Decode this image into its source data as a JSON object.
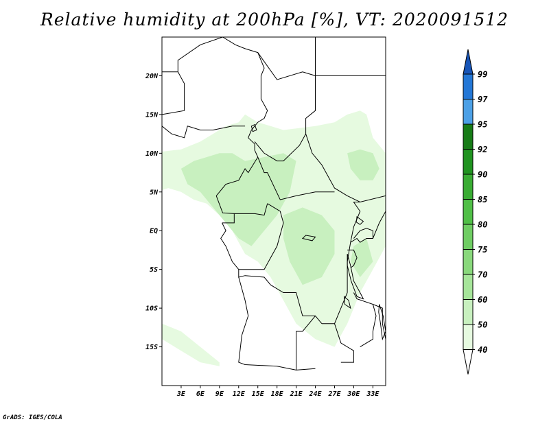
{
  "title": "Relative humidity at 200hPa [%], VT: 2020091512",
  "credit": "GrADS: IGES/COLA",
  "chart_data": {
    "type": "heatmap",
    "variable": "Relative humidity at 200hPa",
    "unit": "%",
    "valid_time": "2020091512",
    "lon_range": [
      0,
      35
    ],
    "lat_range": [
      -20,
      25
    ],
    "x_ticks": [
      {
        "value": 3,
        "label": "3E"
      },
      {
        "value": 6,
        "label": "6E"
      },
      {
        "value": 9,
        "label": "9E"
      },
      {
        "value": 12,
        "label": "12E"
      },
      {
        "value": 15,
        "label": "15E"
      },
      {
        "value": 18,
        "label": "18E"
      },
      {
        "value": 21,
        "label": "21E"
      },
      {
        "value": 24,
        "label": "24E"
      },
      {
        "value": 27,
        "label": "27E"
      },
      {
        "value": 30,
        "label": "30E"
      },
      {
        "value": 33,
        "label": "33E"
      }
    ],
    "y_ticks": [
      {
        "value": 20,
        "label": "20N"
      },
      {
        "value": 15,
        "label": "15N"
      },
      {
        "value": 10,
        "label": "10N"
      },
      {
        "value": 5,
        "label": "5N"
      },
      {
        "value": 0,
        "label": "EQ"
      },
      {
        "value": -5,
        "label": "5S"
      },
      {
        "value": -10,
        "label": "10S"
      },
      {
        "value": -15,
        "label": "15S"
      }
    ],
    "legend": {
      "labels": [
        "40",
        "50",
        "60",
        "70",
        "75",
        "80",
        "85",
        "90",
        "92",
        "95",
        "97",
        "99"
      ],
      "colors": [
        "#ffffff",
        "#e6fae0",
        "#c8f0bf",
        "#a6e59a",
        "#89d87c",
        "#6fcd63",
        "#50bf47",
        "#39ac33",
        "#209320",
        "#177c17",
        "#4ca0e6",
        "#2377d6",
        "#1755b8"
      ]
    },
    "humid_regions": [
      {
        "level": 1,
        "points": [
          [
            -2,
            10
          ],
          [
            3,
            10.5
          ],
          [
            6,
            11.5
          ],
          [
            8,
            12.5
          ],
          [
            10,
            13.5
          ],
          [
            12,
            14
          ],
          [
            13,
            15
          ],
          [
            15,
            14
          ],
          [
            17,
            13.5
          ],
          [
            19,
            13
          ],
          [
            21,
            13.2
          ],
          [
            24,
            13.5
          ],
          [
            27,
            14
          ],
          [
            29,
            15
          ],
          [
            31,
            15.5
          ],
          [
            32,
            15
          ],
          [
            33,
            12
          ],
          [
            35,
            10
          ],
          [
            35,
            -2
          ],
          [
            33,
            -5
          ],
          [
            31,
            -8
          ],
          [
            29,
            -12
          ],
          [
            27,
            -15
          ],
          [
            24,
            -14
          ],
          [
            21,
            -12
          ],
          [
            19,
            -9
          ],
          [
            17,
            -6
          ],
          [
            15,
            -4
          ],
          [
            13,
            -3
          ],
          [
            11,
            0
          ],
          [
            9,
            2
          ],
          [
            7,
            3.5
          ],
          [
            5,
            4
          ],
          [
            3,
            5
          ],
          [
            1,
            5.5
          ],
          [
            -1,
            5
          ],
          [
            -2,
            7
          ]
        ]
      },
      {
        "level": 1,
        "points": [
          [
            0,
            -12
          ],
          [
            3,
            -13
          ],
          [
            6,
            -15
          ],
          [
            9,
            -17
          ],
          [
            9,
            -17.5
          ],
          [
            6,
            -17
          ],
          [
            3,
            -15.5
          ],
          [
            0,
            -14
          ]
        ]
      },
      {
        "level": 2,
        "points": [
          [
            3,
            8
          ],
          [
            5,
            9
          ],
          [
            7,
            9.5
          ],
          [
            9,
            10
          ],
          [
            11,
            10
          ],
          [
            13,
            9
          ],
          [
            16,
            9.5
          ],
          [
            19,
            10
          ],
          [
            21,
            9
          ],
          [
            20,
            5
          ],
          [
            18,
            2
          ],
          [
            16,
            0
          ],
          [
            14,
            -2
          ],
          [
            12,
            -1
          ],
          [
            10,
            1
          ],
          [
            8,
            3
          ],
          [
            6,
            5
          ],
          [
            4,
            6
          ]
        ]
      },
      {
        "level": 2,
        "points": [
          [
            19,
            2
          ],
          [
            22,
            3
          ],
          [
            25,
            2
          ],
          [
            27,
            0
          ],
          [
            27,
            -3
          ],
          [
            25,
            -6
          ],
          [
            22,
            -7
          ],
          [
            20,
            -4
          ],
          [
            19,
            -1
          ]
        ]
      },
      {
        "level": 2,
        "points": [
          [
            29,
            10
          ],
          [
            31,
            10.5
          ],
          [
            33,
            10
          ],
          [
            34,
            8
          ],
          [
            33,
            6.5
          ],
          [
            31,
            6.5
          ],
          [
            29.5,
            8
          ]
        ]
      },
      {
        "level": 2,
        "points": [
          [
            30,
            -2
          ],
          [
            32,
            -1
          ],
          [
            33,
            -4
          ],
          [
            31,
            -6
          ],
          [
            29.5,
            -4
          ]
        ]
      }
    ],
    "boundary_lines": [
      [
        [
          0,
          20.5
        ],
        [
          2.5,
          20.5
        ],
        [
          2.5,
          22
        ],
        [
          6,
          24
        ],
        [
          9.5,
          25
        ]
      ],
      [
        [
          2.5,
          20.5
        ],
        [
          3.5,
          19
        ],
        [
          3.5,
          15.5
        ],
        [
          0,
          15
        ],
        [
          0,
          13.5
        ],
        [
          1.5,
          12.5
        ],
        [
          3.5,
          12
        ],
        [
          4,
          13.5
        ],
        [
          6,
          13
        ],
        [
          8,
          13
        ],
        [
          11,
          13.5
        ],
        [
          13,
          13.5
        ]
      ],
      [
        [
          9.5,
          25
        ],
        [
          11.5,
          24
        ],
        [
          13,
          23.5
        ],
        [
          15,
          23
        ],
        [
          18,
          19.5
        ],
        [
          22,
          20.5
        ],
        [
          24,
          20
        ],
        [
          24,
          25
        ]
      ],
      [
        [
          15,
          23
        ],
        [
          16,
          21
        ],
        [
          15.5,
          20
        ],
        [
          15.5,
          17
        ],
        [
          16.5,
          15.5
        ],
        [
          16,
          14.5
        ],
        [
          15,
          14
        ],
        [
          14,
          13
        ],
        [
          13.5,
          12
        ],
        [
          14.5,
          11.2
        ],
        [
          14.5,
          10.4
        ],
        [
          15,
          9.5
        ],
        [
          13.5,
          7.5
        ],
        [
          13,
          8
        ],
        [
          12,
          6.5
        ],
        [
          10,
          6
        ],
        [
          9,
          5
        ],
        [
          8.5,
          4.5
        ]
      ],
      [
        [
          14.5,
          11.5
        ],
        [
          16,
          10
        ],
        [
          18,
          9
        ],
        [
          19,
          9
        ],
        [
          21.5,
          11
        ],
        [
          22.5,
          12.5
        ],
        [
          22.5,
          14.5
        ],
        [
          24,
          15.5
        ],
        [
          24,
          20
        ]
      ],
      [
        [
          22.5,
          12.5
        ],
        [
          23.5,
          10
        ],
        [
          25,
          8.5
        ],
        [
          27,
          5.5
        ],
        [
          29,
          4.5
        ],
        [
          31,
          3.7
        ],
        [
          35,
          4.5
        ]
      ],
      [
        [
          24,
          20
        ],
        [
          35,
          20
        ]
      ],
      [
        [
          15,
          9.5
        ],
        [
          16,
          7.5
        ],
        [
          16.5,
          7.5
        ],
        [
          18.5,
          4
        ],
        [
          21,
          4.5
        ],
        [
          24,
          5
        ],
        [
          27,
          5
        ]
      ],
      [
        [
          16.5,
          3.5
        ],
        [
          18.5,
          2.5
        ],
        [
          19,
          1
        ],
        [
          18,
          -2
        ],
        [
          17,
          -3.5
        ],
        [
          16,
          -5
        ],
        [
          13,
          -5
        ],
        [
          12,
          -5
        ]
      ],
      [
        [
          8.5,
          4.5
        ],
        [
          9.5,
          2.3
        ],
        [
          11.3,
          2.2
        ],
        [
          11.3,
          1
        ],
        [
          9.4,
          1
        ]
      ],
      [
        [
          11.3,
          2.2
        ],
        [
          13,
          2.2
        ],
        [
          14.5,
          2.2
        ],
        [
          16,
          2
        ],
        [
          16.5,
          3.5
        ]
      ],
      [
        [
          9.4,
          1
        ],
        [
          10,
          0
        ],
        [
          9.2,
          -1
        ],
        [
          10,
          -2
        ],
        [
          11,
          -4
        ],
        [
          12,
          -5
        ]
      ],
      [
        [
          12,
          -5
        ],
        [
          12,
          -6
        ],
        [
          13,
          -5.8
        ],
        [
          16,
          -6
        ],
        [
          17,
          -7
        ],
        [
          19,
          -8
        ],
        [
          21,
          -8
        ],
        [
          22,
          -11
        ],
        [
          24,
          -11
        ],
        [
          25,
          -12
        ]
      ],
      [
        [
          12,
          -6
        ],
        [
          13,
          -9
        ],
        [
          13.5,
          -11
        ],
        [
          12.5,
          -13.5
        ],
        [
          12,
          -17
        ],
        [
          13,
          -17.3
        ],
        [
          18,
          -17.5
        ],
        [
          21,
          -18
        ],
        [
          24,
          -17.8
        ]
      ],
      [
        [
          21,
          -18
        ],
        [
          21,
          -13
        ],
        [
          22,
          -13
        ],
        [
          24,
          -11
        ]
      ],
      [
        [
          25,
          -12
        ],
        [
          27,
          -12
        ],
        [
          28,
          -10
        ],
        [
          29,
          -8
        ]
      ],
      [
        [
          29,
          -8
        ],
        [
          29,
          -4
        ],
        [
          29.5,
          -1.5
        ],
        [
          30,
          0.5
        ],
        [
          30.5,
          1.5
        ],
        [
          31,
          2.5
        ],
        [
          30,
          3.7
        ],
        [
          31,
          3.7
        ]
      ],
      [
        [
          29.5,
          -1.5
        ],
        [
          30.5,
          -1
        ],
        [
          31,
          -1.5
        ],
        [
          32,
          -1
        ],
        [
          33,
          -1
        ],
        [
          34,
          1
        ],
        [
          35,
          2.5
        ]
      ],
      [
        [
          29,
          -2.5
        ],
        [
          30,
          -2.5
        ],
        [
          30.5,
          -3.5
        ],
        [
          30,
          -4.5
        ],
        [
          29.5,
          -4.8
        ]
      ],
      [
        [
          30,
          -1
        ],
        [
          31,
          0
        ],
        [
          32,
          0.3
        ],
        [
          33,
          0
        ],
        [
          33,
          -1
        ]
      ],
      [
        [
          30,
          -8
        ],
        [
          30.5,
          -8.8
        ],
        [
          33,
          -9.5
        ],
        [
          33.5,
          -11
        ],
        [
          33,
          -13
        ],
        [
          33,
          -14
        ],
        [
          31,
          -15
        ]
      ],
      [
        [
          33,
          -9.5
        ],
        [
          34.5,
          -10
        ],
        [
          34.5,
          -12
        ],
        [
          35,
          -14
        ]
      ],
      [
        [
          27,
          -12
        ],
        [
          28,
          -14.5
        ],
        [
          30,
          -15.5
        ],
        [
          30,
          -17
        ],
        [
          28,
          -17
        ]
      ]
    ],
    "lake_outlines": [
      [
        [
          29,
          -3
        ],
        [
          29.5,
          -4.5
        ],
        [
          30,
          -6.5
        ],
        [
          31,
          -8
        ],
        [
          31.5,
          -8.8
        ],
        [
          30.5,
          -8.5
        ],
        [
          29.6,
          -6.5
        ],
        [
          29,
          -4.5
        ]
      ],
      [
        [
          34,
          -9.5
        ],
        [
          34.6,
          -11
        ],
        [
          35,
          -13
        ],
        [
          34.5,
          -14
        ],
        [
          34.2,
          -12
        ],
        [
          33.9,
          -10.5
        ]
      ],
      [
        [
          14,
          13.5
        ],
        [
          14.5,
          13.7
        ],
        [
          14.8,
          13
        ],
        [
          14.2,
          12.8
        ]
      ],
      [
        [
          30.5,
          1.8
        ],
        [
          31.5,
          1.2
        ],
        [
          31,
          0.8
        ],
        [
          30.4,
          1.1
        ]
      ],
      [
        [
          28.5,
          -8.5
        ],
        [
          29.2,
          -9
        ],
        [
          29.5,
          -10
        ],
        [
          28.6,
          -9.5
        ]
      ],
      [
        [
          22,
          -1
        ],
        [
          23.5,
          -1.3
        ],
        [
          24,
          -0.8
        ],
        [
          22.5,
          -0.6
        ]
      ]
    ]
  }
}
